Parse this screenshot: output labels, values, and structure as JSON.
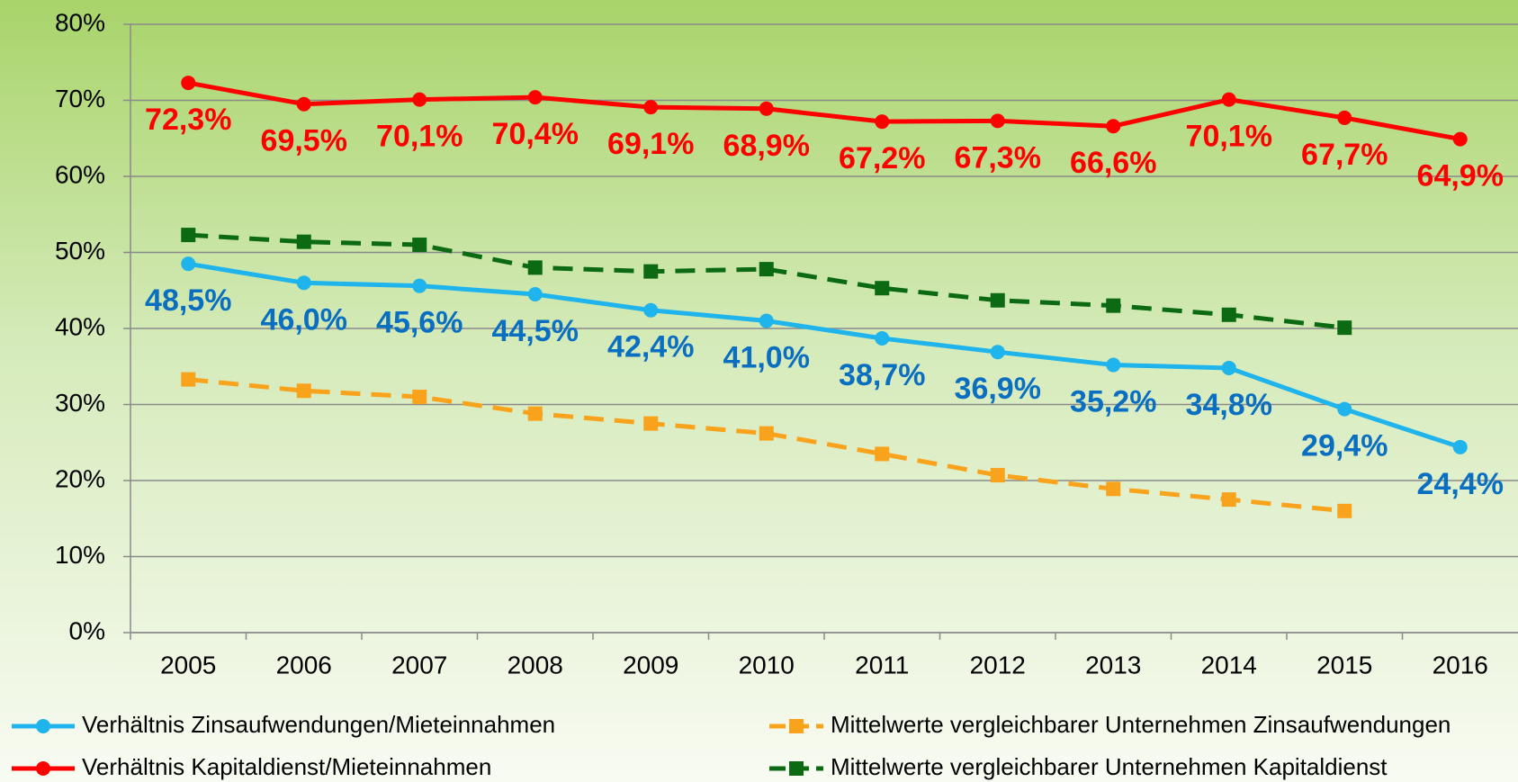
{
  "chart_data": {
    "type": "line",
    "categories": [
      "2005",
      "2006",
      "2007",
      "2008",
      "2009",
      "2010",
      "2011",
      "2012",
      "2013",
      "2014",
      "2015",
      "2016"
    ],
    "ylim": [
      0,
      80
    ],
    "yticks": [
      {
        "value": 0,
        "label": "0%"
      },
      {
        "value": 10,
        "label": "10%"
      },
      {
        "value": 20,
        "label": "20%"
      },
      {
        "value": 30,
        "label": "30%"
      },
      {
        "value": 40,
        "label": "40%"
      },
      {
        "value": 50,
        "label": "50%"
      },
      {
        "value": 60,
        "label": "60%"
      },
      {
        "value": 70,
        "label": "70%"
      },
      {
        "value": 80,
        "label": "80%"
      }
    ],
    "grid": true,
    "legend": "bottom",
    "series": [
      {
        "name": "Verhältnis Zinsaufwendungen/Mieteinnahmen",
        "color": "#1fb4ec",
        "label_color": "#0a6fc0",
        "dash": false,
        "marker": "circle",
        "values": [
          48.5,
          46.0,
          45.6,
          44.5,
          42.4,
          41.0,
          38.7,
          36.9,
          35.2,
          34.8,
          29.4,
          24.4
        ],
        "value_labels": [
          "48,5%",
          "46,0%",
          "45,6%",
          "44,5%",
          "42,4%",
          "41,0%",
          "38,7%",
          "36,9%",
          "35,2%",
          "34,8%",
          "29,4%",
          "24,4%"
        ]
      },
      {
        "name": "Verhältnis Kapitaldienst/Mieteinnahmen",
        "color": "#ff0000",
        "label_color": "#ff0000",
        "dash": false,
        "marker": "circle",
        "values": [
          72.3,
          69.5,
          70.1,
          70.4,
          69.1,
          68.9,
          67.2,
          67.3,
          66.6,
          70.1,
          67.7,
          64.9
        ],
        "value_labels": [
          "72,3%",
          "69,5%",
          "70,1%",
          "70,4%",
          "69,1%",
          "68,9%",
          "67,2%",
          "67,3%",
          "66,6%",
          "70,1%",
          "67,7%",
          "64,9%"
        ]
      },
      {
        "name": "Mittelwerte vergleichbarer Unternehmen Zinsaufwendungen",
        "color": "#f9a21c",
        "dash": true,
        "marker": "square",
        "values": [
          33.3,
          31.8,
          31.0,
          28.8,
          27.5,
          26.2,
          23.5,
          20.7,
          18.9,
          17.5,
          16.0,
          null
        ]
      },
      {
        "name": "Mittelwerte vergleichbarer Unternehmen Kapitaldienst",
        "color": "#0b6a12",
        "dash": true,
        "marker": "square",
        "values": [
          52.3,
          51.4,
          51.0,
          48.0,
          47.5,
          47.8,
          45.3,
          43.7,
          43.0,
          41.8,
          40.1,
          null
        ]
      }
    ]
  }
}
